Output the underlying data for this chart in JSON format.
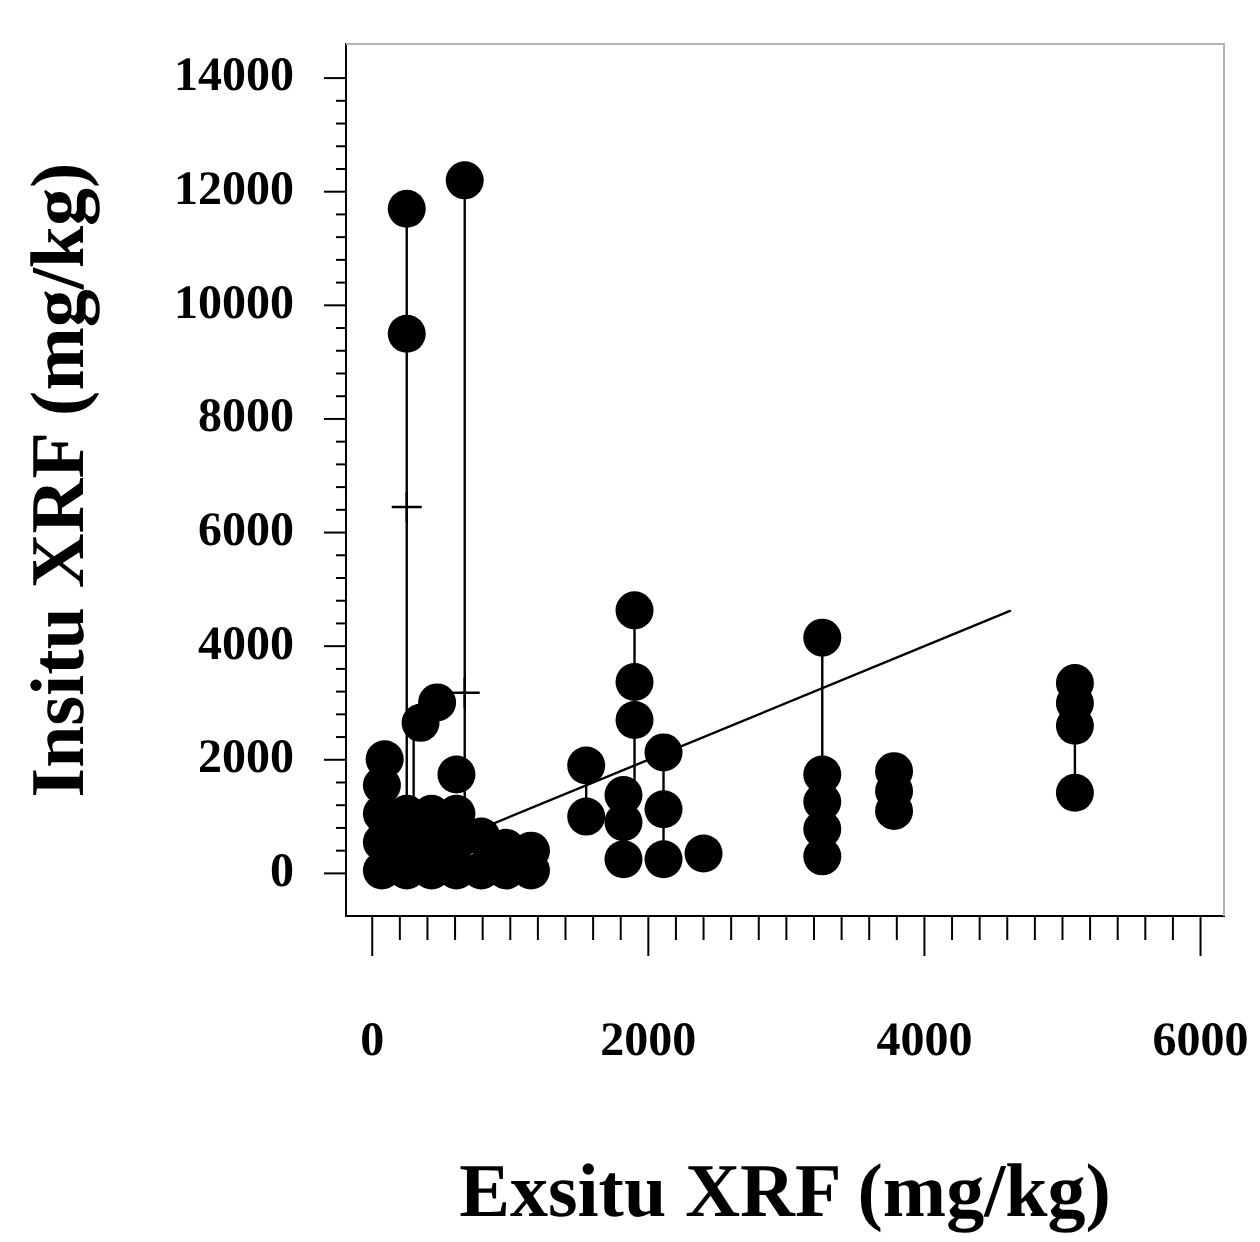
{
  "chart_data": {
    "type": "scatter",
    "xlabel": "Exsitu XRF (mg/kg)",
    "ylabel": "Insitu XRF (mg/kg)",
    "xlim": [
      -190,
      6170
    ],
    "ylim": [
      -750,
      14600
    ],
    "xticks": [
      0,
      {
        "value": 200,
        "label": null
      },
      {
        "value": 400,
        "label": null
      },
      {
        "value": 600,
        "label": null
      },
      {
        "value": 800,
        "label": null
      },
      {
        "value": 1000,
        "label": null
      },
      {
        "value": 1200,
        "label": null
      },
      {
        "value": 1400,
        "label": null
      },
      {
        "value": 1600,
        "label": null
      },
      {
        "value": 1800,
        "label": null
      },
      2000,
      {
        "value": 2200,
        "label": null
      },
      {
        "value": 2400,
        "label": null
      },
      {
        "value": 2600,
        "label": null
      },
      {
        "value": 2800,
        "label": null
      },
      {
        "value": 3000,
        "label": null
      },
      {
        "value": 3200,
        "label": null
      },
      {
        "value": 3400,
        "label": null
      },
      {
        "value": 3600,
        "label": null
      },
      {
        "value": 3800,
        "label": null
      },
      4000,
      {
        "value": 4200,
        "label": null
      },
      {
        "value": 4400,
        "label": null
      },
      {
        "value": 4600,
        "label": null
      },
      {
        "value": 4800,
        "label": null
      },
      {
        "value": 5000,
        "label": null
      },
      {
        "value": 5200,
        "label": null
      },
      {
        "value": 5400,
        "label": null
      },
      {
        "value": 5600,
        "label": null
      },
      {
        "value": 5800,
        "label": null
      },
      6000
    ],
    "yticks": [
      0,
      {
        "value": 400,
        "label": null
      },
      {
        "value": 800,
        "label": null
      },
      {
        "value": 1200,
        "label": null
      },
      {
        "value": 1600,
        "label": null
      },
      2000,
      {
        "value": 2400,
        "label": null
      },
      {
        "value": 2800,
        "label": null
      },
      {
        "value": 3200,
        "label": null
      },
      {
        "value": 3600,
        "label": null
      },
      4000,
      {
        "value": 4400,
        "label": null
      },
      {
        "value": 4800,
        "label": null
      },
      {
        "value": 5200,
        "label": null
      },
      {
        "value": 5600,
        "label": null
      },
      6000,
      {
        "value": 6400,
        "label": null
      },
      {
        "value": 6800,
        "label": null
      },
      {
        "value": 7200,
        "label": null
      },
      {
        "value": 7600,
        "label": null
      },
      8000,
      {
        "value": 8400,
        "label": null
      },
      {
        "value": 8800,
        "label": null
      },
      {
        "value": 9200,
        "label": null
      },
      {
        "value": 9600,
        "label": null
      },
      10000,
      {
        "value": 10400,
        "label": null
      },
      {
        "value": 10800,
        "label": null
      },
      {
        "value": 11200,
        "label": null
      },
      {
        "value": 11600,
        "label": null
      },
      12000,
      {
        "value": 12400,
        "label": null
      },
      {
        "value": 12800,
        "label": null
      },
      {
        "value": 13200,
        "label": null
      },
      {
        "value": 13600,
        "label": null
      },
      14000
    ],
    "grid": false,
    "legend": false,
    "series": [
      {
        "type": "line",
        "marker": "none",
        "color": "#000000",
        "x": [
          250,
          250
        ],
        "values": [
          50,
          11700
        ]
      },
      {
        "type": "line",
        "marker": "none",
        "color": "#000000",
        "x": [
          300,
          300
        ],
        "values": [
          50,
          2650
        ]
      },
      {
        "type": "line",
        "marker": "none",
        "color": "#000000",
        "x": [
          670,
          670
        ],
        "values": [
          50,
          12200
        ]
      },
      {
        "type": "line",
        "marker": "none",
        "color": "#000000",
        "x": [
          1550,
          1550
        ],
        "values": [
          1000,
          1900
        ]
      },
      {
        "type": "line",
        "marker": "none",
        "color": "#000000",
        "x": [
          1900,
          1900
        ],
        "values": [
          1380,
          4630
        ]
      },
      {
        "type": "line",
        "marker": "none",
        "color": "#000000",
        "x": [
          2110,
          2110
        ],
        "values": [
          250,
          2130
        ]
      },
      {
        "type": "line",
        "marker": "none",
        "color": "#000000",
        "x": [
          3260,
          3260
        ],
        "values": [
          300,
          4150
        ]
      },
      {
        "type": "line",
        "marker": "none",
        "color": "#000000",
        "x": [
          5090,
          5090
        ],
        "values": [
          1420,
          3350
        ]
      },
      {
        "type": "line",
        "marker": "none",
        "color": "#000000",
        "x": [
          0,
          4620
        ],
        "values": [
          0,
          4620
        ]
      },
      {
        "type": "scatter",
        "marker": "cross",
        "color": "#000000",
        "x": [
          250,
          670
        ],
        "values": [
          6450,
          3180
        ]
      },
      {
        "type": "scatter",
        "marker": "circle",
        "color": "#000000",
        "x": [
          70,
          70,
          70,
          70,
          90,
          250,
          250,
          250,
          250,
          250,
          430,
          430,
          430,
          610,
          610,
          610,
          610,
          790,
          790,
          970,
          970,
          1150,
          1150,
          350,
          470,
          670,
          1550,
          1550,
          1820,
          1820,
          1820,
          1900,
          1900,
          1900,
          2110,
          2110,
          2110,
          2400,
          3260,
          3260,
          3260,
          3260,
          3260,
          3780,
          3780,
          3780,
          5090,
          5090,
          5090,
          5090
        ],
        "values": [
          50,
          550,
          1050,
          1550,
          2010,
          50,
          550,
          1050,
          9500,
          11700,
          50,
          550,
          1050,
          50,
          550,
          1050,
          1740,
          50,
          650,
          50,
          450,
          50,
          400,
          2650,
          3010,
          12200,
          1000,
          1900,
          250,
          900,
          1380,
          2700,
          3370,
          4630,
          250,
          1130,
          2130,
          350,
          300,
          780,
          1260,
          1740,
          4150,
          1100,
          1450,
          1800,
          1420,
          2600,
          3000,
          3350
        ]
      }
    ]
  }
}
